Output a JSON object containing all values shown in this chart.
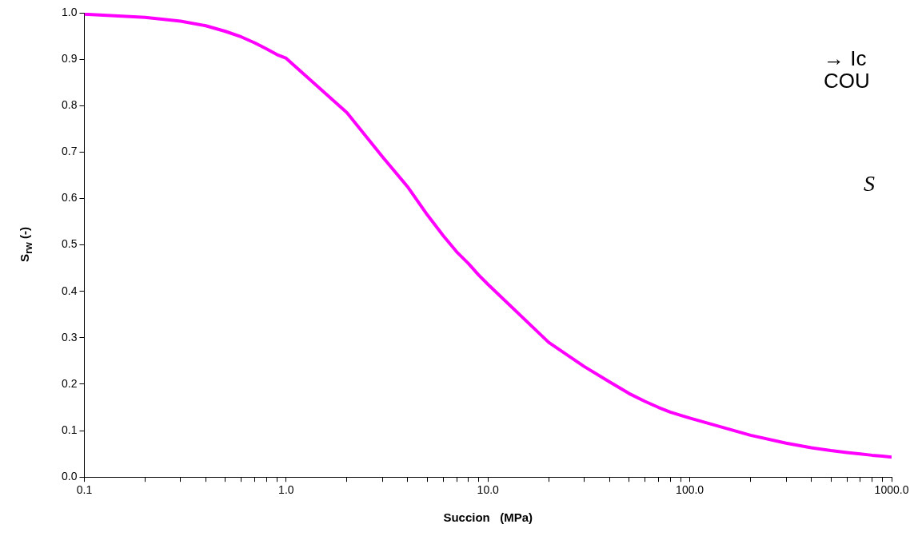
{
  "chart_data": {
    "type": "line",
    "xlabel": "Succion   (MPa)",
    "ylabel": "S$_{rw}$  (-)",
    "annotations": [
      "→ Ic",
      "COU",
      "S"
    ],
    "log": "x",
    "grid": false,
    "legend": false,
    "marker": "none",
    "line_style": "solid",
    "xlim": [
      0.1,
      1000
    ],
    "ylim": [
      0,
      1
    ],
    "xticks": [
      {
        "value": 0.1,
        "label": "0.1"
      },
      {
        "value": 0.2,
        "label": null
      },
      {
        "value": 0.3,
        "label": null
      },
      {
        "value": 0.4,
        "label": null
      },
      {
        "value": 0.5,
        "label": null
      },
      {
        "value": 0.6,
        "label": null
      },
      {
        "value": 0.7,
        "label": null
      },
      {
        "value": 0.8,
        "label": null
      },
      {
        "value": 0.9,
        "label": null
      },
      {
        "value": 1,
        "label": "1.0"
      },
      {
        "value": 2,
        "label": null
      },
      {
        "value": 3,
        "label": null
      },
      {
        "value": 4,
        "label": null
      },
      {
        "value": 5,
        "label": null
      },
      {
        "value": 6,
        "label": null
      },
      {
        "value": 7,
        "label": null
      },
      {
        "value": 8,
        "label": null
      },
      {
        "value": 9,
        "label": null
      },
      {
        "value": 10,
        "label": "10.0"
      },
      {
        "value": 20,
        "label": null
      },
      {
        "value": 30,
        "label": null
      },
      {
        "value": 40,
        "label": null
      },
      {
        "value": 50,
        "label": null
      },
      {
        "value": 60,
        "label": null
      },
      {
        "value": 70,
        "label": null
      },
      {
        "value": 80,
        "label": null
      },
      {
        "value": 90,
        "label": null
      },
      {
        "value": 100,
        "label": "100.0"
      },
      {
        "value": 200,
        "label": null
      },
      {
        "value": 300,
        "label": null
      },
      {
        "value": 400,
        "label": null
      },
      {
        "value": 500,
        "label": null
      },
      {
        "value": 600,
        "label": null
      },
      {
        "value": 700,
        "label": null
      },
      {
        "value": 800,
        "label": null
      },
      {
        "value": 900,
        "label": null
      },
      {
        "value": 1000,
        "label": "1000.0"
      }
    ],
    "yticks": [
      {
        "value": 0,
        "label": "0.0"
      },
      0.1,
      0.2,
      0.3,
      0.4,
      0.5,
      0.6,
      0.7,
      0.8,
      0.9,
      {
        "value": 1,
        "label": "1.0"
      }
    ],
    "x": [
      0.1,
      0.2,
      0.3,
      0.4,
      0.5,
      0.6,
      0.7,
      0.8,
      0.9,
      1,
      2,
      3,
      4,
      5,
      6,
      7,
      8,
      9,
      10,
      20,
      30,
      40,
      50,
      60,
      70,
      80,
      90,
      100,
      200,
      300,
      400,
      500,
      600,
      700,
      800,
      900,
      1000
    ],
    "series": [
      {
        "color": "#ff00ff",
        "values": [
          0.997,
          0.99,
          0.982,
          0.972,
          0.96,
          0.948,
          0.935,
          0.922,
          0.91,
          0.902,
          0.785,
          0.69,
          0.625,
          0.565,
          0.52,
          0.485,
          0.46,
          0.435,
          0.415,
          0.29,
          0.238,
          0.205,
          0.18,
          0.163,
          0.15,
          0.14,
          0.133,
          0.127,
          0.09,
          0.073,
          0.063,
          0.057,
          0.053,
          0.05,
          0.047,
          0.045,
          0.043
        ]
      }
    ]
  }
}
